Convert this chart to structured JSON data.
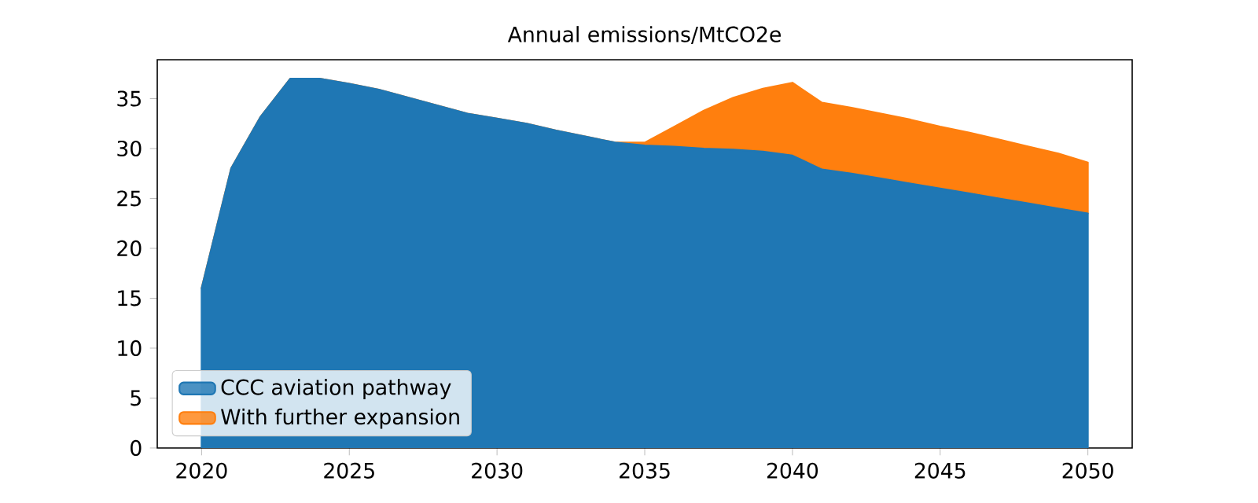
{
  "chart_data": {
    "type": "area",
    "title": "Annual emissions/MtCO2e",
    "stacked": true,
    "x": [
      2020,
      2021,
      2022,
      2023,
      2024,
      2025,
      2026,
      2027,
      2028,
      2029,
      2030,
      2031,
      2032,
      2033,
      2034,
      2035,
      2036,
      2037,
      2038,
      2039,
      2040,
      2041,
      2042,
      2043,
      2044,
      2045,
      2046,
      2047,
      2048,
      2049,
      2050
    ],
    "series": [
      {
        "name": "CCC aviation pathway",
        "color": "#1f77b4",
        "values": [
          16,
          28,
          33.2,
          37,
          37,
          36.5,
          35.9,
          35.1,
          34.3,
          33.5,
          33.0,
          32.5,
          31.8,
          31.2,
          30.6,
          30.3,
          30.2,
          30.0,
          29.9,
          29.7,
          29.3,
          27.9,
          27.5,
          27.0,
          26.5,
          26.0,
          25.5,
          25.0,
          24.5,
          24.0,
          23.5
        ]
      },
      {
        "name": "With further expansion",
        "color": "#ff7f0e",
        "values": [
          0,
          0,
          0,
          0,
          0,
          0,
          0,
          0,
          0,
          0,
          0,
          0,
          0,
          0,
          0,
          0.3,
          2.0,
          3.8,
          5.2,
          6.3,
          7.3,
          6.7,
          6.6,
          6.5,
          6.4,
          6.2,
          6.1,
          5.9,
          5.7,
          5.5,
          5.1
        ]
      }
    ],
    "xlim": [
      2018.5,
      2051.5
    ],
    "ylim": [
      0,
      38.9
    ],
    "xticks": [
      2020,
      2025,
      2030,
      2035,
      2040,
      2045,
      2050
    ],
    "yticks": [
      0,
      5,
      10,
      15,
      20,
      25,
      30,
      35
    ],
    "legend": "bottom left"
  }
}
